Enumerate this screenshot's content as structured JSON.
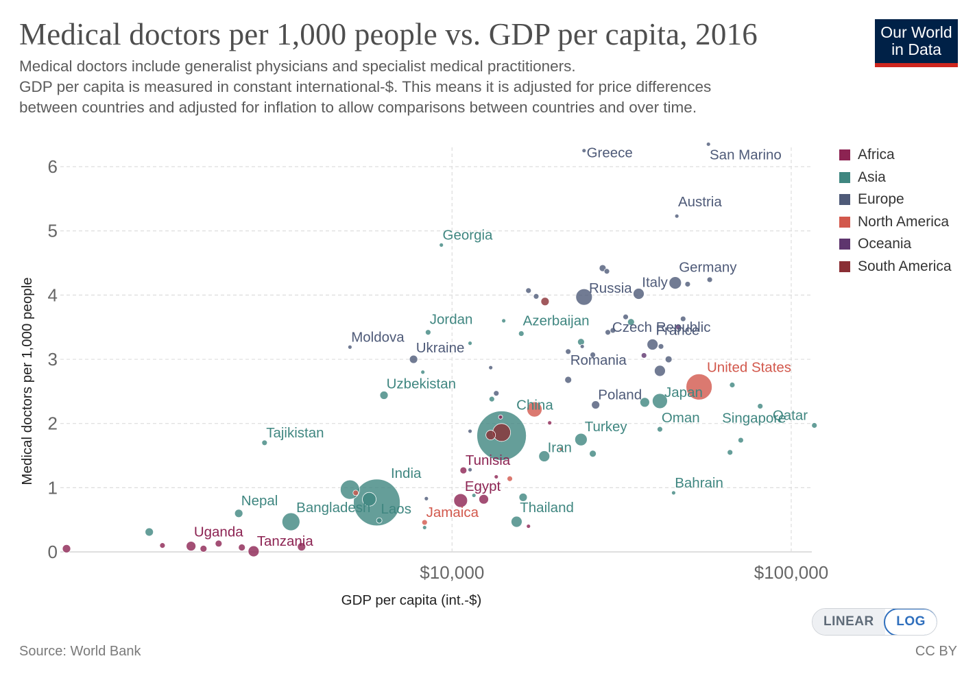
{
  "header": {
    "title": "Medical doctors per 1,000 people vs. GDP per capita, 2016",
    "subtitle_lines": [
      "Medical doctors include generalist physicians and specialist medical practitioners.",
      "GDP per capita is measured in constant international-$. This means it is adjusted for price differences",
      "between countries and adjusted for inflation to allow comparisons between countries and over time."
    ]
  },
  "logo": {
    "line1": "Our World",
    "line2": "in Data"
  },
  "footer": {
    "source": "Source: World Bank",
    "license": "CC BY"
  },
  "scale_toggle": {
    "linear": "LINEAR",
    "log": "LOG",
    "selected": "LOG"
  },
  "colors": {
    "Africa": "#8c2352",
    "Asia": "#3f8680",
    "Europe": "#4e5a78",
    "North America": "#d2584c",
    "Oceania": "#5e356e",
    "South America": "#8a2f35"
  },
  "legend": [
    "Africa",
    "Asia",
    "Europe",
    "North America",
    "Oceania",
    "South America"
  ],
  "chart_data": {
    "type": "scatter",
    "title": "Medical doctors per 1,000 people vs. GDP per capita, 2016",
    "xlabel": "GDP per capita (int.-$)",
    "ylabel": "Medical doctors per 1,000 people",
    "x_scale": "log",
    "xlim": [
      700,
      115000
    ],
    "ylim": [
      0,
      6.3
    ],
    "x_ticks": [
      10000,
      100000
    ],
    "x_tick_labels": [
      "$10,000",
      "$100,000"
    ],
    "y_ticks": [
      0,
      1,
      2,
      3,
      4,
      5,
      6
    ],
    "y_tick_labels": [
      "0",
      "1",
      "2",
      "3",
      "4",
      "5",
      "6"
    ],
    "grid": true,
    "legend_position": "right",
    "points": [
      {
        "name": "Greece",
        "region": "Europe",
        "x": 24500,
        "y": 6.25,
        "size": 3,
        "label": true
      },
      {
        "name": "San Marino",
        "region": "Europe",
        "x": 57000,
        "y": 6.35,
        "size": 3,
        "label": true
      },
      {
        "name": "Austria",
        "region": "Europe",
        "x": 46000,
        "y": 5.23,
        "size": 3,
        "label": true
      },
      {
        "name": "Georgia",
        "region": "Asia",
        "x": 9300,
        "y": 4.78,
        "size": 3,
        "label": true
      },
      {
        "name": "Germany",
        "region": "Europe",
        "x": 45500,
        "y": 4.19,
        "size": 9,
        "label": true
      },
      {
        "name": "Russia",
        "region": "Europe",
        "x": 24500,
        "y": 3.97,
        "size": 12,
        "label": true
      },
      {
        "name": "Italy",
        "region": "Europe",
        "x": 35500,
        "y": 4.02,
        "size": 8,
        "label": true
      },
      {
        "name": "Czech Republic",
        "region": "Europe",
        "x": 32500,
        "y": 3.66,
        "size": 4,
        "label": true
      },
      {
        "name": "France",
        "region": "Europe",
        "x": 39000,
        "y": 3.23,
        "size": 8,
        "label": true
      },
      {
        "name": "Jordan",
        "region": "Asia",
        "x": 8500,
        "y": 3.42,
        "size": 4,
        "label": true
      },
      {
        "name": "Azerbaijan",
        "region": "Asia",
        "x": 16000,
        "y": 3.4,
        "size": 4,
        "label": true
      },
      {
        "name": "Moldova",
        "region": "Europe",
        "x": 5000,
        "y": 3.19,
        "size": 3,
        "label": true
      },
      {
        "name": "Ukraine",
        "region": "Europe",
        "x": 7700,
        "y": 3.0,
        "size": 6,
        "label": true
      },
      {
        "name": "Romania",
        "region": "Europe",
        "x": 22000,
        "y": 2.68,
        "size": 5,
        "label": true
      },
      {
        "name": "United States",
        "region": "North America",
        "x": 53500,
        "y": 2.57,
        "size": 19,
        "label": true
      },
      {
        "name": "Uzbekistan",
        "region": "Asia",
        "x": 6300,
        "y": 2.44,
        "size": 6,
        "label": true
      },
      {
        "name": "Poland",
        "region": "Europe",
        "x": 26500,
        "y": 2.29,
        "size": 6,
        "label": true
      },
      {
        "name": "Japan",
        "region": "Asia",
        "x": 41000,
        "y": 2.35,
        "size": 11,
        "label": true
      },
      {
        "name": "Singapore",
        "region": "Asia",
        "x": 81000,
        "y": 2.27,
        "size": 4,
        "label": true
      },
      {
        "name": "China",
        "region": "Asia",
        "x": 14000,
        "y": 1.81,
        "size": 36,
        "label": true
      },
      {
        "name": "Qatar",
        "region": "Asia",
        "x": 117000,
        "y": 1.97,
        "size": 4,
        "label": true
      },
      {
        "name": "Oman",
        "region": "Asia",
        "x": 41000,
        "y": 1.91,
        "size": 4,
        "label": true
      },
      {
        "name": "Tajikistan",
        "region": "Asia",
        "x": 2800,
        "y": 1.7,
        "size": 4,
        "label": true
      },
      {
        "name": "Turkey",
        "region": "Asia",
        "x": 24000,
        "y": 1.75,
        "size": 9,
        "label": true
      },
      {
        "name": "Iran",
        "region": "Asia",
        "x": 18700,
        "y": 1.49,
        "size": 8,
        "label": true
      },
      {
        "name": "Tunisia",
        "region": "Africa",
        "x": 10800,
        "y": 1.27,
        "size": 5,
        "label": true
      },
      {
        "name": "India",
        "region": "Asia",
        "x": 6000,
        "y": 0.77,
        "size": 34,
        "label": true
      },
      {
        "name": "Egypt",
        "region": "Africa",
        "x": 10600,
        "y": 0.8,
        "size": 10,
        "label": true
      },
      {
        "name": "Bahrain",
        "region": "Asia",
        "x": 45000,
        "y": 0.92,
        "size": 3,
        "label": true
      },
      {
        "name": "Nepal",
        "region": "Asia",
        "x": 2350,
        "y": 0.6,
        "size": 6,
        "label": true
      },
      {
        "name": "Bangladesh",
        "region": "Asia",
        "x": 3350,
        "y": 0.47,
        "size": 13,
        "label": true
      },
      {
        "name": "Laos",
        "region": "Asia",
        "x": 6100,
        "y": 0.49,
        "size": 4,
        "label": true
      },
      {
        "name": "Jamaica",
        "region": "North America",
        "x": 8300,
        "y": 0.46,
        "size": 4,
        "label": true
      },
      {
        "name": "Thailand",
        "region": "Asia",
        "x": 15500,
        "y": 0.47,
        "size": 8,
        "label": true
      },
      {
        "name": "Uganda",
        "region": "Africa",
        "x": 1700,
        "y": 0.09,
        "size": 7,
        "label": true
      },
      {
        "name": "Tanzania",
        "region": "Africa",
        "x": 2600,
        "y": 0.01,
        "size": 8,
        "label": true
      },
      {
        "name": "",
        "region": "Africa",
        "x": 730,
        "y": 0.05,
        "size": 6,
        "label": false
      },
      {
        "name": "",
        "region": "Asia",
        "x": 1280,
        "y": 0.31,
        "size": 6,
        "label": false
      },
      {
        "name": "",
        "region": "Africa",
        "x": 1400,
        "y": 0.1,
        "size": 4,
        "label": false
      },
      {
        "name": "",
        "region": "Africa",
        "x": 1850,
        "y": 0.05,
        "size": 5,
        "label": false
      },
      {
        "name": "",
        "region": "Africa",
        "x": 2050,
        "y": 0.13,
        "size": 5,
        "label": false
      },
      {
        "name": "",
        "region": "Africa",
        "x": 2400,
        "y": 0.07,
        "size": 5,
        "label": false
      },
      {
        "name": "",
        "region": "Africa",
        "x": 3600,
        "y": 0.08,
        "size": 6,
        "label": false
      },
      {
        "name": "",
        "region": "Asia",
        "x": 5000,
        "y": 0.97,
        "size": 14,
        "label": false
      },
      {
        "name": "",
        "region": "Asia",
        "x": 5700,
        "y": 0.82,
        "size": 10,
        "label": false
      },
      {
        "name": "",
        "region": "North America",
        "x": 5200,
        "y": 0.92,
        "size": 4,
        "label": false
      },
      {
        "name": "",
        "region": "Asia",
        "x": 8300,
        "y": 0.38,
        "size": 3,
        "label": false
      },
      {
        "name": "",
        "region": "Europe",
        "x": 8400,
        "y": 0.83,
        "size": 3,
        "label": false
      },
      {
        "name": "",
        "region": "Asia",
        "x": 8200,
        "y": 2.8,
        "size": 3,
        "label": false
      },
      {
        "name": "",
        "region": "Asia",
        "x": 11300,
        "y": 3.25,
        "size": 3,
        "label": false
      },
      {
        "name": "",
        "region": "Europe",
        "x": 11300,
        "y": 1.88,
        "size": 3,
        "label": false
      },
      {
        "name": "",
        "region": "Europe",
        "x": 11300,
        "y": 1.28,
        "size": 3,
        "label": false
      },
      {
        "name": "",
        "region": "Africa",
        "x": 12400,
        "y": 0.82,
        "size": 7,
        "label": false
      },
      {
        "name": "",
        "region": "Asia",
        "x": 11600,
        "y": 0.88,
        "size": 3,
        "label": false
      },
      {
        "name": "",
        "region": "Africa",
        "x": 13500,
        "y": 1.17,
        "size": 3,
        "label": false
      },
      {
        "name": "",
        "region": "North America",
        "x": 14800,
        "y": 1.14,
        "size": 4,
        "label": false
      },
      {
        "name": "",
        "region": "Asia",
        "x": 16200,
        "y": 0.85,
        "size": 6,
        "label": false
      },
      {
        "name": "",
        "region": "Africa",
        "x": 16800,
        "y": 0.4,
        "size": 3,
        "label": false
      },
      {
        "name": "",
        "region": "South America",
        "x": 14000,
        "y": 1.86,
        "size": 13,
        "label": false
      },
      {
        "name": "",
        "region": "South America",
        "x": 13000,
        "y": 1.82,
        "size": 7,
        "label": false
      },
      {
        "name": "",
        "region": "Africa",
        "x": 13900,
        "y": 2.1,
        "size": 3,
        "label": false
      },
      {
        "name": "",
        "region": "North America",
        "x": 17500,
        "y": 2.22,
        "size": 11,
        "label": false
      },
      {
        "name": "",
        "region": "Africa",
        "x": 19400,
        "y": 2.01,
        "size": 3,
        "label": false
      },
      {
        "name": "",
        "region": "Asia",
        "x": 13100,
        "y": 2.38,
        "size": 4,
        "label": false
      },
      {
        "name": "",
        "region": "Europe",
        "x": 13500,
        "y": 2.47,
        "size": 4,
        "label": false
      },
      {
        "name": "",
        "region": "Europe",
        "x": 13000,
        "y": 2.87,
        "size": 3,
        "label": false
      },
      {
        "name": "",
        "region": "Asia",
        "x": 14200,
        "y": 3.6,
        "size": 3,
        "label": false
      },
      {
        "name": "",
        "region": "Europe",
        "x": 16800,
        "y": 4.07,
        "size": 4,
        "label": false
      },
      {
        "name": "",
        "region": "Europe",
        "x": 17700,
        "y": 3.98,
        "size": 4,
        "label": false
      },
      {
        "name": "",
        "region": "South America",
        "x": 18800,
        "y": 3.9,
        "size": 6,
        "label": false
      },
      {
        "name": "",
        "region": "North America",
        "x": 21000,
        "y": 1.6,
        "size": 3,
        "label": false
      },
      {
        "name": "",
        "region": "Europe",
        "x": 22000,
        "y": 3.12,
        "size": 4,
        "label": false
      },
      {
        "name": "",
        "region": "Asia",
        "x": 24000,
        "y": 3.27,
        "size": 5,
        "label": false
      },
      {
        "name": "",
        "region": "Europe",
        "x": 24200,
        "y": 3.2,
        "size": 3,
        "label": false
      },
      {
        "name": "",
        "region": "Europe",
        "x": 26000,
        "y": 3.07,
        "size": 4,
        "label": false
      },
      {
        "name": "",
        "region": "Asia",
        "x": 26000,
        "y": 1.53,
        "size": 5,
        "label": false
      },
      {
        "name": "",
        "region": "Europe",
        "x": 27800,
        "y": 4.42,
        "size": 5,
        "label": false
      },
      {
        "name": "",
        "region": "Europe",
        "x": 28600,
        "y": 4.37,
        "size": 4,
        "label": false
      },
      {
        "name": "",
        "region": "Europe",
        "x": 28800,
        "y": 3.42,
        "size": 4,
        "label": false
      },
      {
        "name": "",
        "region": "Europe",
        "x": 29800,
        "y": 3.45,
        "size": 4,
        "label": false
      },
      {
        "name": "",
        "region": "Asia",
        "x": 33700,
        "y": 3.58,
        "size": 5,
        "label": false
      },
      {
        "name": "",
        "region": "Oceania",
        "x": 36800,
        "y": 3.06,
        "size": 4,
        "label": false
      },
      {
        "name": "",
        "region": "Europe",
        "x": 41000,
        "y": 2.82,
        "size": 8,
        "label": false
      },
      {
        "name": "",
        "region": "Asia",
        "x": 37000,
        "y": 2.33,
        "size": 7,
        "label": false
      },
      {
        "name": "",
        "region": "Europe",
        "x": 43500,
        "y": 3.0,
        "size": 5,
        "label": false
      },
      {
        "name": "",
        "region": "Europe",
        "x": 41300,
        "y": 3.2,
        "size": 4,
        "label": false
      },
      {
        "name": "",
        "region": "Europe",
        "x": 48000,
        "y": 3.63,
        "size": 4,
        "label": false
      },
      {
        "name": "",
        "region": "Oceania",
        "x": 46500,
        "y": 3.5,
        "size": 4,
        "label": false
      },
      {
        "name": "",
        "region": "Europe",
        "x": 49500,
        "y": 4.17,
        "size": 4,
        "label": false
      },
      {
        "name": "",
        "region": "Europe",
        "x": 57500,
        "y": 4.24,
        "size": 4,
        "label": false
      },
      {
        "name": "",
        "region": "Asia",
        "x": 67000,
        "y": 2.6,
        "size": 4,
        "label": false
      },
      {
        "name": "",
        "region": "Asia",
        "x": 66000,
        "y": 1.55,
        "size": 4,
        "label": false
      },
      {
        "name": "",
        "region": "Asia",
        "x": 71000,
        "y": 1.74,
        "size": 4,
        "label": false
      }
    ]
  }
}
